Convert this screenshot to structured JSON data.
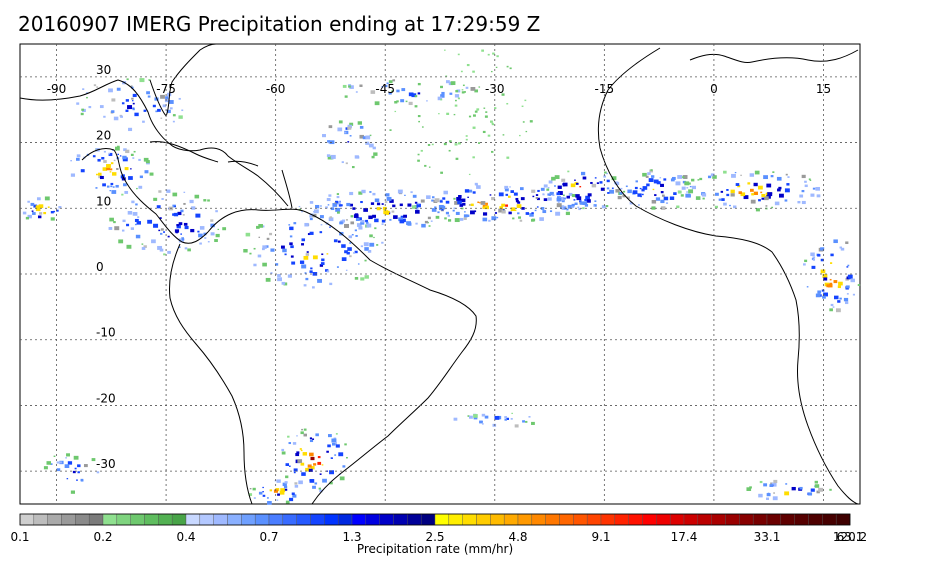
{
  "map": {
    "title": "20160907 IMERG Precipitation ending at 17:29:59 Z",
    "longitude_labels": [
      "-90",
      "-75",
      "-60",
      "-45",
      "-30",
      "-15",
      "0",
      "15"
    ],
    "latitude_labels": [
      "30",
      "20",
      "10",
      "0",
      "-10",
      "-20",
      "-30"
    ],
    "extent": {
      "lon_min": -95,
      "lon_max": 20,
      "lat_min": -35,
      "lat_max": 35
    },
    "gridlines": true,
    "coastline_color": "#000000"
  },
  "colorbar": {
    "title": "Precipitation rate (mm/hr)",
    "tick_labels": [
      "0.1",
      "0.2",
      "0.4",
      "0.7",
      "1.3",
      "2.5",
      "4.8",
      "9.1",
      "17.4",
      "33.1",
      "63.1",
      "120.2"
    ],
    "colors": [
      "#cfcfcf",
      "#bdbdbd",
      "#aaaaaa",
      "#9a9a9a",
      "#8a8a8a",
      "#7b7b7b",
      "#8fe08f",
      "#7fd47f",
      "#6ec86e",
      "#5fbd5f",
      "#52b152",
      "#48a448",
      "#c8d8ff",
      "#b3c8ff",
      "#9fb9ff",
      "#8ab0ff",
      "#6fa0ff",
      "#5a90ff",
      "#4a7dff",
      "#386bff",
      "#2659ff",
      "#1444ff",
      "#0033ff",
      "#0028e0",
      "#0000ff",
      "#0000e0",
      "#0000c8",
      "#0000b0",
      "#000098",
      "#000080",
      "#ffff00",
      "#ffee00",
      "#ffdd00",
      "#ffcc00",
      "#ffbb00",
      "#ffaa00",
      "#ff9900",
      "#ff8800",
      "#ff7700",
      "#ff6600",
      "#ff5500",
      "#ff4400",
      "#ff3300",
      "#ff2200",
      "#ff1100",
      "#ff0000",
      "#ee0000",
      "#dd0000",
      "#cc0000",
      "#bb0000",
      "#aa0000",
      "#990000",
      "#880000",
      "#770000",
      "#6b0000",
      "#5f0000",
      "#560000",
      "#4e0000",
      "#460000",
      "#3e0000"
    ],
    "group_size": 6
  },
  "precip_systems": [
    {
      "lon": -45,
      "lat": 10,
      "rx": 12,
      "ry": 3,
      "intensity": 4,
      "n": 120
    },
    {
      "lon": -30,
      "lat": 11,
      "rx": 12,
      "ry": 3,
      "intensity": 5,
      "n": 130
    },
    {
      "lon": -18,
      "lat": 13,
      "rx": 6,
      "ry": 3,
      "intensity": 5,
      "n": 70
    },
    {
      "lon": -8,
      "lat": 13,
      "rx": 6,
      "ry": 3,
      "intensity": 3,
      "n": 60
    },
    {
      "lon": 5,
      "lat": 13,
      "rx": 10,
      "ry": 3,
      "intensity": 4,
      "n": 90
    },
    {
      "lon": 16,
      "lat": 0,
      "rx": 4,
      "ry": 6,
      "intensity": 5,
      "n": 60
    },
    {
      "lon": -55,
      "lat": 4,
      "rx": 10,
      "ry": 6,
      "intensity": 3,
      "n": 110
    },
    {
      "lon": -75,
      "lat": 8,
      "rx": 8,
      "ry": 5,
      "intensity": 3,
      "n": 90
    },
    {
      "lon": -83,
      "lat": 16,
      "rx": 6,
      "ry": 4,
      "intensity": 4,
      "n": 70
    },
    {
      "lon": -80,
      "lat": 26,
      "rx": 8,
      "ry": 4,
      "intensity": 2,
      "n": 60
    },
    {
      "lon": -92,
      "lat": 10,
      "rx": 3,
      "ry": 2,
      "intensity": 5,
      "n": 25
    },
    {
      "lon": -42,
      "lat": 28,
      "rx": 10,
      "ry": 2,
      "intensity": 2,
      "n": 40
    },
    {
      "lon": -55,
      "lat": -28,
      "rx": 5,
      "ry": 5,
      "intensity": 5,
      "n": 70
    },
    {
      "lon": -60,
      "lat": -33,
      "rx": 4,
      "ry": 2,
      "intensity": 4,
      "n": 30
    },
    {
      "lon": -30,
      "lat": -22,
      "rx": 6,
      "ry": 1,
      "intensity": 1,
      "n": 25
    },
    {
      "lon": -88,
      "lat": -30,
      "rx": 4,
      "ry": 3,
      "intensity": 2,
      "n": 25
    },
    {
      "lon": 10,
      "lat": -33,
      "rx": 6,
      "ry": 2,
      "intensity": 3,
      "n": 30
    },
    {
      "lon": -50,
      "lat": 20,
      "rx": 4,
      "ry": 4,
      "intensity": 2,
      "n": 35
    },
    {
      "lon": -35,
      "lat": 25,
      "rx": 10,
      "ry": 10,
      "intensity": 0,
      "n": 80
    }
  ]
}
